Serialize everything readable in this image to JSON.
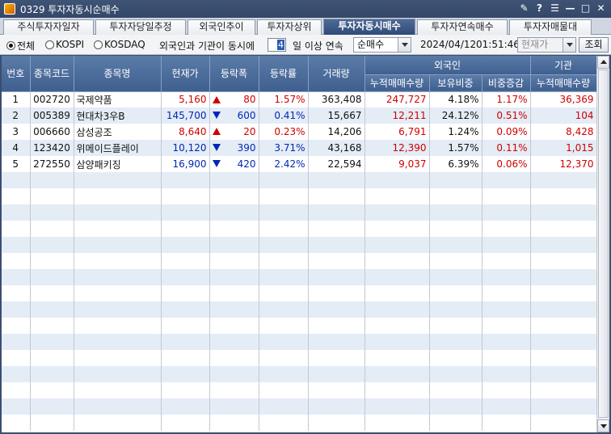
{
  "window": {
    "title": "0329 투자자동시순매수"
  },
  "tabs": [
    {
      "label": "주식투자자일자"
    },
    {
      "label": "투자자당일추정"
    },
    {
      "label": "외국인추이"
    },
    {
      "label": "투자자상위"
    },
    {
      "label": "투자자동시매수"
    },
    {
      "label": "투자자연속매수"
    },
    {
      "label": "투자자매물대"
    }
  ],
  "filters": {
    "market_all": "전체",
    "market_kospi": "KOSPI",
    "market_kosdaq": "KOSDAQ",
    "condition_prefix": "외국인과 기관이 동시에",
    "days": "4",
    "condition_suffix": "일 이상 연속",
    "order_select": "순매수",
    "date": "2024/04/12",
    "time": "01:51:46",
    "price_select": "현재가",
    "query_button": "조회"
  },
  "columns": {
    "no": "번호",
    "code": "종목코드",
    "name": "종목명",
    "price": "현재가",
    "change": "등락폭",
    "rate": "등락률",
    "volume": "거래량",
    "foreign": "외국인",
    "foreign_cum": "누적매매수량",
    "foreign_hold": "보유비중",
    "foreign_diff": "비중증감",
    "inst": "기관",
    "inst_cum": "누적매매수량"
  },
  "rows": [
    {
      "no": "1",
      "code": "002720",
      "name": "국제약품",
      "price": "5,160",
      "dir": "up",
      "change": "80",
      "rate": "1.57%",
      "volume": "363,408",
      "foreign_cum": "247,727",
      "foreign_hold": "4.18%",
      "foreign_diff": "1.17%",
      "inst_cum": "36,369"
    },
    {
      "no": "2",
      "code": "005389",
      "name": "현대차3우B",
      "price": "145,700",
      "dir": "down",
      "change": "600",
      "rate": "0.41%",
      "volume": "15,667",
      "foreign_cum": "12,211",
      "foreign_hold": "24.12%",
      "foreign_diff": "0.51%",
      "inst_cum": "104"
    },
    {
      "no": "3",
      "code": "006660",
      "name": "삼성공조",
      "price": "8,640",
      "dir": "up",
      "change": "20",
      "rate": "0.23%",
      "volume": "14,206",
      "foreign_cum": "6,791",
      "foreign_hold": "1.24%",
      "foreign_diff": "0.09%",
      "inst_cum": "8,428"
    },
    {
      "no": "4",
      "code": "123420",
      "name": "위메이드플레이",
      "price": "10,120",
      "dir": "down",
      "change": "390",
      "rate": "3.71%",
      "volume": "43,168",
      "foreign_cum": "12,390",
      "foreign_hold": "1.57%",
      "foreign_diff": "0.11%",
      "inst_cum": "1,015"
    },
    {
      "no": "5",
      "code": "272550",
      "name": "삼양패키징",
      "price": "16,900",
      "dir": "down",
      "change": "420",
      "rate": "2.42%",
      "volume": "22,594",
      "foreign_cum": "9,037",
      "foreign_hold": "6.39%",
      "foreign_diff": "0.06%",
      "inst_cum": "12,370"
    }
  ],
  "colors": {
    "up": "#d00000",
    "down": "#0027b5",
    "header": "#4a6a9a",
    "stripe": "#e4ecf6"
  }
}
